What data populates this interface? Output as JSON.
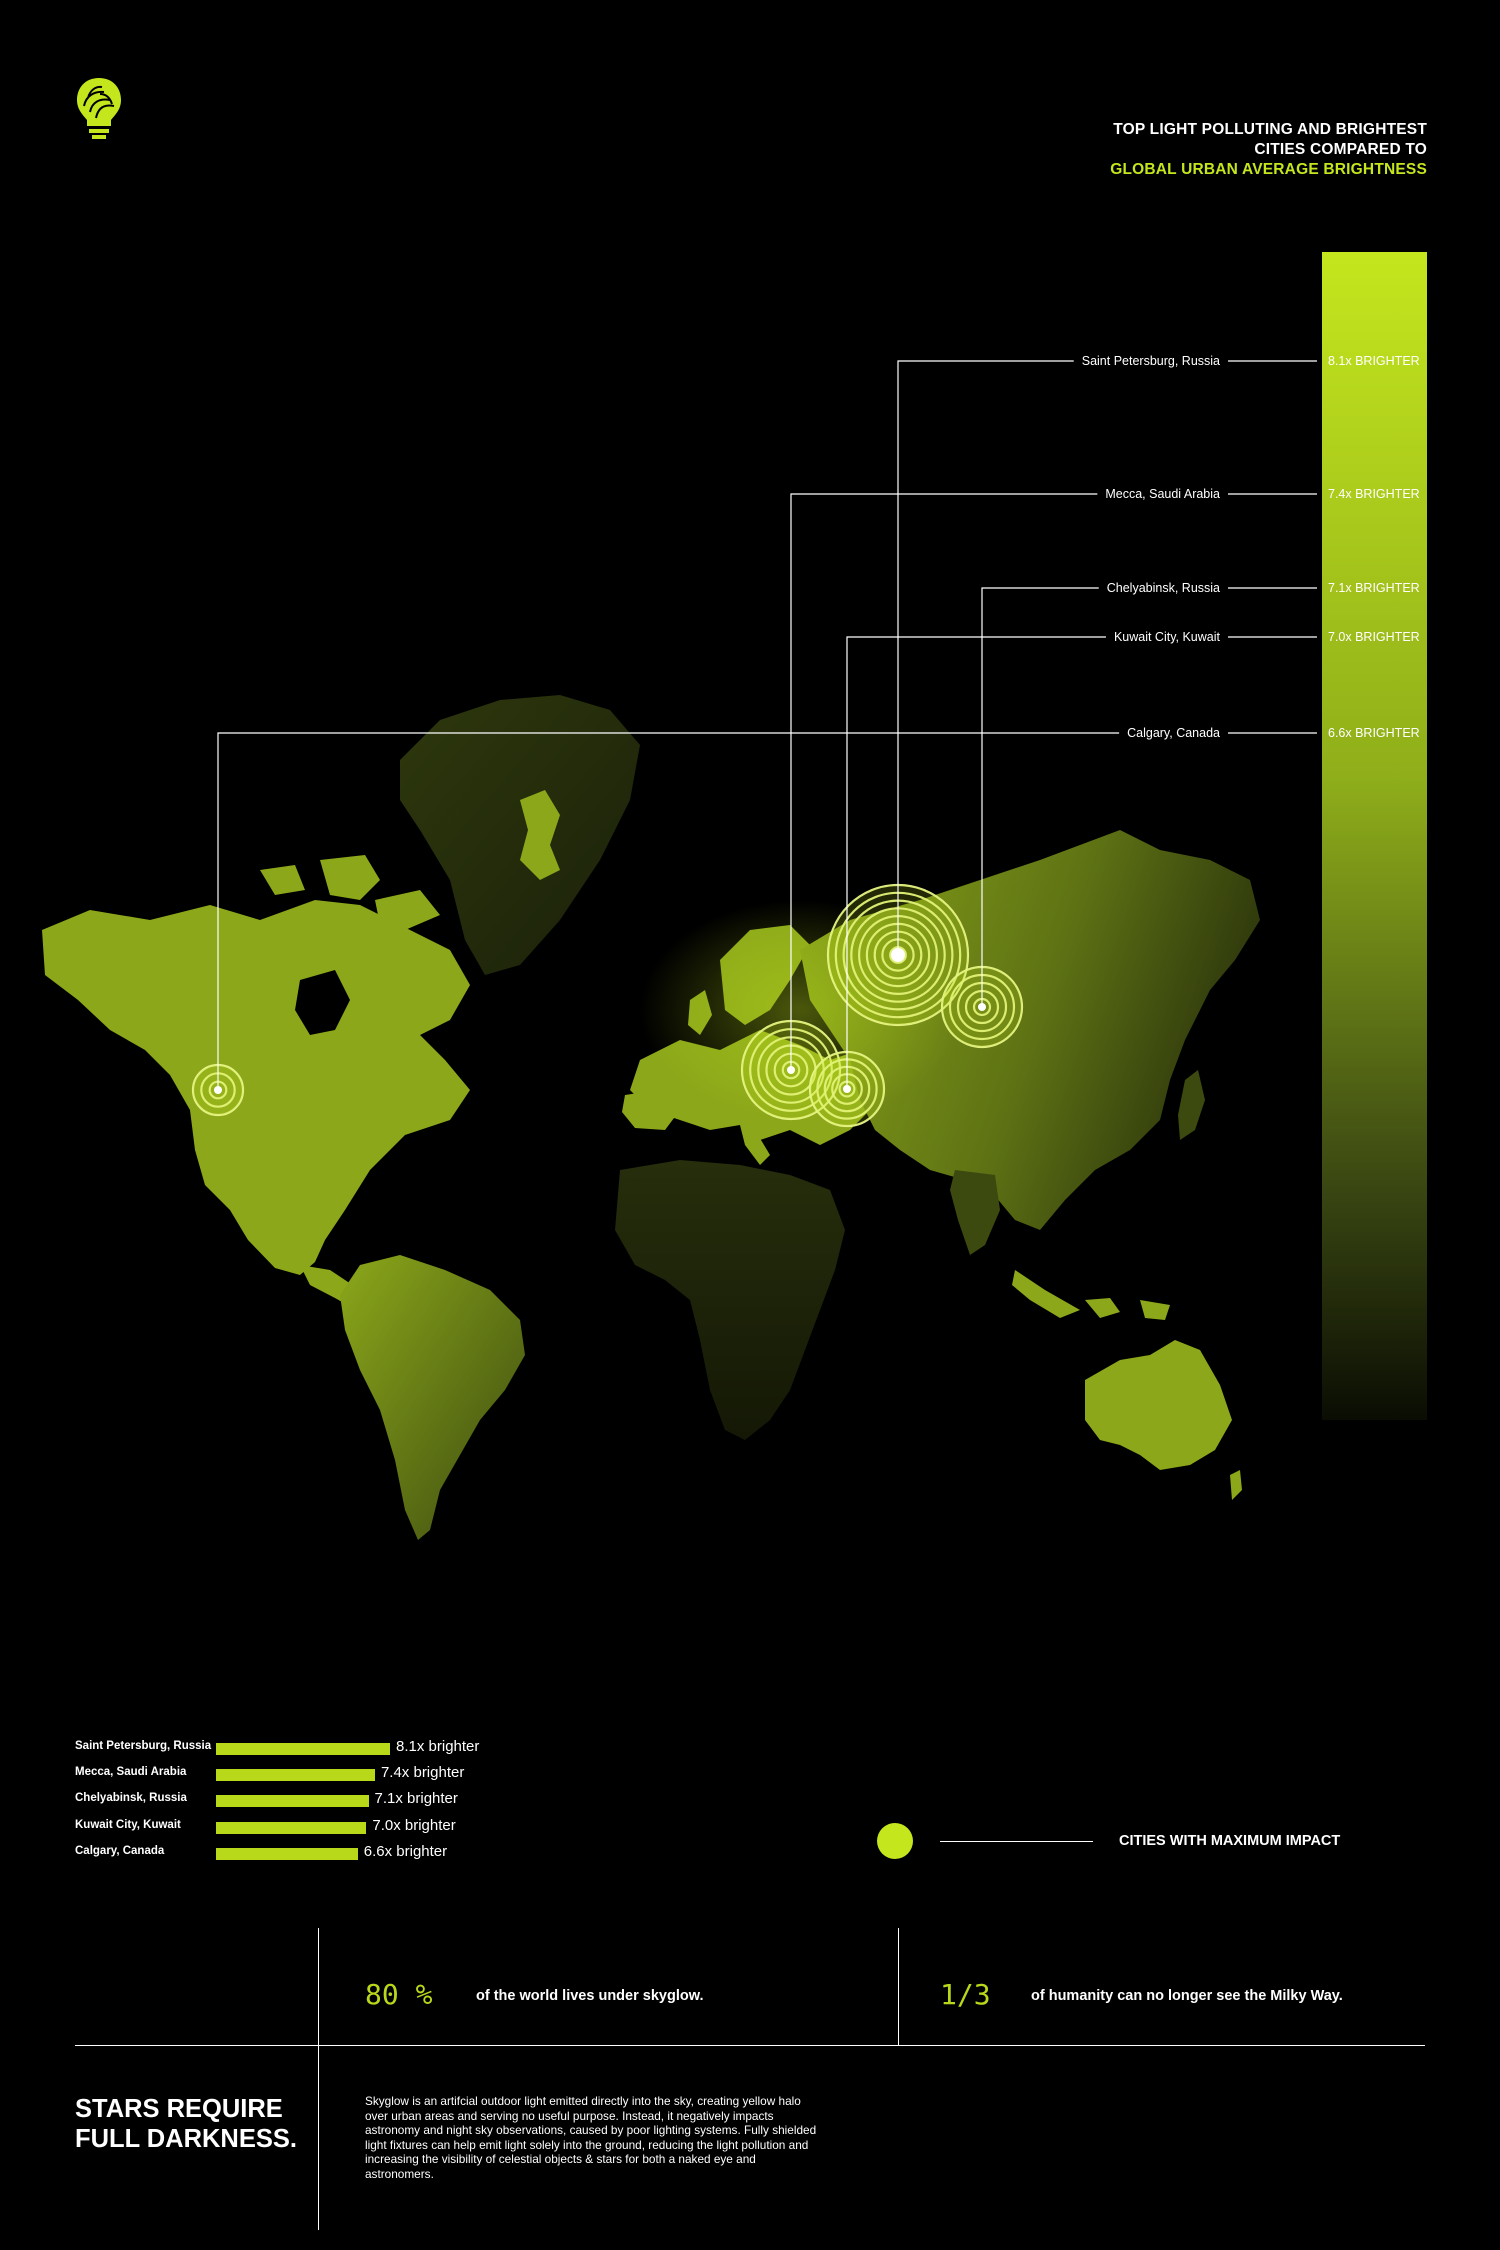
{
  "title": {
    "line1": "TOP LIGHT POLLUTING AND BRIGHTEST",
    "line2": "CITIES COMPARED TO",
    "line3": "GLOBAL URBAN AVERAGE BRIGHTNESS"
  },
  "colors": {
    "accent": "#c4e61d",
    "map": "#8ca81a",
    "background": "#000000"
  },
  "icons": {
    "logo": "lightbulb-brain-icon"
  },
  "chart_data": {
    "type": "bar",
    "categories": [
      "Saint Petersburg, Russia",
      "Mecca, Saudi Arabia",
      "Chelyabinsk, Russia",
      "Kuwait City, Kuwait",
      "Calgary, Canada"
    ],
    "values": [
      8.1,
      7.4,
      7.1,
      7.0,
      6.6
    ],
    "labels": [
      "8.1x BRIGHTER",
      "7.4x BRIGHTER",
      "7.1x BRIGHTER",
      "7.0x BRIGHTER",
      "6.6x BRIGHTER"
    ],
    "bar_labels": [
      "8.1x brighter",
      "7.4x brighter",
      "7.1x brighter",
      "7.0x brighter",
      "6.6x brighter"
    ]
  },
  "legend": {
    "label": "CITIES WITH MAXIMUM IMPACT"
  },
  "stats": [
    {
      "value": "80 %",
      "text": "of the world lives under skyglow."
    },
    {
      "value": "1/3",
      "text": "of humanity can no longer see the Milky Way."
    }
  ],
  "footer": {
    "heading_line1": "STARS REQUIRE",
    "heading_line2": "FULL DARKNESS.",
    "description": "Skyglow is an artifcial outdoor light emitted directly into the sky, creating yellow halo over urban areas and serving no useful purpose. Instead, it negatively impacts astronomy and night sky observations, caused by poor lighting systems. Fully shielded light fixtures can help emit light solely into the ground, reducing the light pollution and increasing the visibility of celestial objects & stars for both a naked eye and astronomers."
  }
}
